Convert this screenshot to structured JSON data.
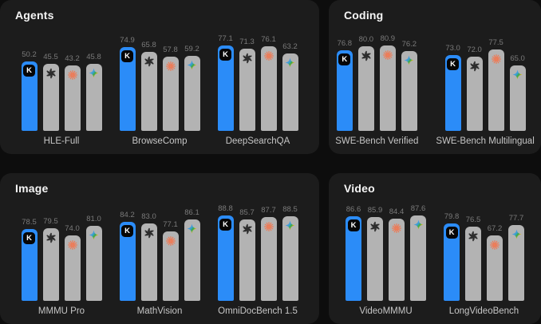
{
  "colors": {
    "page_bg": "#0d0d0d",
    "card_bg": "#1c1c1c",
    "highlight_bar_blue": "#2b8cf8",
    "default_bar_gray": "#b3b3b3",
    "value_label": "#7a7a7a",
    "group_label": "#c6c6c6",
    "title_text": "#f5f5f5",
    "claude_orange": "#ef7a55",
    "openai_dark": "#2d2d2d",
    "kimi_badge_bg": "#060606"
  },
  "models": [
    {
      "id": "kimi",
      "icon": "kimi-k-icon",
      "highlight": true
    },
    {
      "id": "openai",
      "icon": "openai-logo-icon",
      "highlight": false
    },
    {
      "id": "claude",
      "icon": "anthropic-asterisk-icon",
      "highlight": false
    },
    {
      "id": "gemini",
      "icon": "gemini-sparkle-icon",
      "highlight": false
    }
  ],
  "panels": [
    {
      "title": "Agents",
      "groups": [
        {
          "label": "HLE-Full",
          "values": [
            "50.2",
            "45.5",
            "43.2",
            "45.8"
          ]
        },
        {
          "label": "BrowseComp",
          "values": [
            "74.9",
            "65.8",
            "57.8",
            "59.2"
          ]
        },
        {
          "label": "DeepSearchQA",
          "values": [
            "77.1",
            "71.3",
            "76.1",
            "63.2"
          ]
        }
      ]
    },
    {
      "title": "Coding",
      "groups": [
        {
          "label": "SWE-Bench Verified",
          "values": [
            "76.8",
            "80.0",
            "80.9",
            "76.2"
          ]
        },
        {
          "label": "SWE-Bench Multilingual",
          "values": [
            "73.0",
            "72.0",
            "77.5",
            "65.0"
          ]
        }
      ]
    },
    {
      "title": "Image",
      "groups": [
        {
          "label": "MMMU Pro",
          "values": [
            "78.5",
            "79.5",
            "74.0",
            "81.0"
          ]
        },
        {
          "label": "MathVision",
          "values": [
            "84.2",
            "83.0",
            "77.1",
            "86.1"
          ]
        },
        {
          "label": "OmniDocBench 1.5",
          "values": [
            "88.8",
            "85.7",
            "87.7",
            "88.5"
          ]
        }
      ]
    },
    {
      "title": "Video",
      "groups": [
        {
          "label": "VideoMMMU",
          "values": [
            "86.6",
            "85.9",
            "84.4",
            "87.6"
          ]
        },
        {
          "label": "LongVideoBench",
          "values": [
            "79.8",
            "76.5",
            "67.2",
            "77.7"
          ]
        }
      ]
    }
  ],
  "chart_data": [
    {
      "type": "bar",
      "title": "Agents",
      "categories": [
        "HLE-Full",
        "BrowseComp",
        "DeepSearchQA"
      ],
      "series": [
        {
          "name": "kimi-k",
          "values": [
            50.2,
            74.9,
            77.1
          ]
        },
        {
          "name": "openai",
          "values": [
            45.5,
            65.8,
            71.3
          ]
        },
        {
          "name": "anthropic-claude",
          "values": [
            43.2,
            57.8,
            76.1
          ]
        },
        {
          "name": "gemini",
          "values": [
            45.8,
            59.2,
            63.2
          ]
        }
      ],
      "ylim": [
        0,
        100
      ],
      "grid": false,
      "legend": "icons-on-bars",
      "data_labels": true
    },
    {
      "type": "bar",
      "title": "Coding",
      "categories": [
        "SWE-Bench Verified",
        "SWE-Bench Multilingual"
      ],
      "series": [
        {
          "name": "kimi-k",
          "values": [
            76.8,
            73.0
          ]
        },
        {
          "name": "openai",
          "values": [
            80.0,
            72.0
          ]
        },
        {
          "name": "anthropic-claude",
          "values": [
            80.9,
            77.5
          ]
        },
        {
          "name": "gemini",
          "values": [
            76.2,
            65.0
          ]
        }
      ],
      "ylim": [
        0,
        100
      ],
      "grid": false,
      "legend": "icons-on-bars",
      "data_labels": true
    },
    {
      "type": "bar",
      "title": "Image",
      "categories": [
        "MMMU Pro",
        "MathVision",
        "OmniDocBench 1.5"
      ],
      "series": [
        {
          "name": "kimi-k",
          "values": [
            78.5,
            84.2,
            88.8
          ]
        },
        {
          "name": "openai",
          "values": [
            79.5,
            83.0,
            85.7
          ]
        },
        {
          "name": "anthropic-claude",
          "values": [
            74.0,
            77.1,
            87.7
          ]
        },
        {
          "name": "gemini",
          "values": [
            81.0,
            86.1,
            88.5
          ]
        }
      ],
      "ylim": [
        0,
        100
      ],
      "grid": false,
      "legend": "icons-on-bars",
      "data_labels": true
    },
    {
      "type": "bar",
      "title": "Video",
      "categories": [
        "VideoMMMU",
        "LongVideoBench"
      ],
      "series": [
        {
          "name": "kimi-k",
          "values": [
            86.6,
            79.8
          ]
        },
        {
          "name": "openai",
          "values": [
            85.9,
            76.5
          ]
        },
        {
          "name": "anthropic-claude",
          "values": [
            84.4,
            67.2
          ]
        },
        {
          "name": "gemini",
          "values": [
            87.6,
            77.7
          ]
        }
      ],
      "ylim": [
        0,
        100
      ],
      "grid": false,
      "legend": "icons-on-bars",
      "data_labels": true
    }
  ]
}
